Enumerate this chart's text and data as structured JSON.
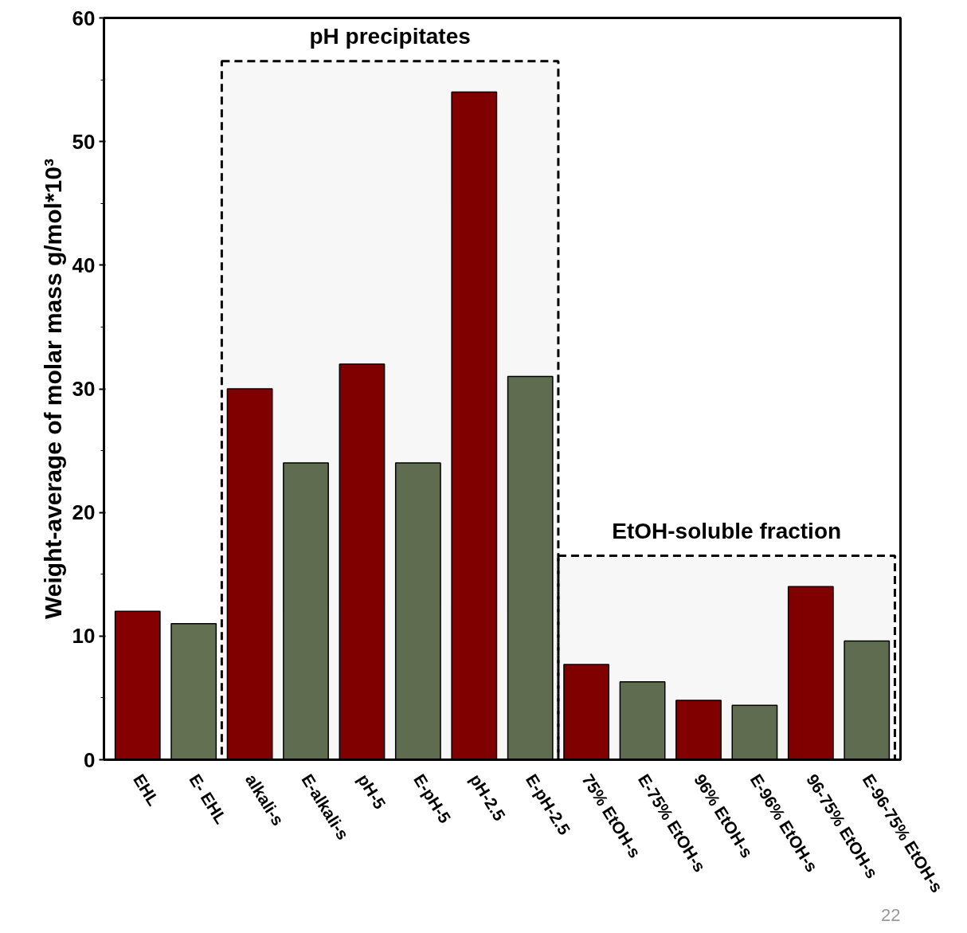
{
  "chart_data": {
    "type": "bar",
    "ylabel": "Weight-average of molar mass g/mol*10³",
    "categories": [
      "EHL",
      "E- EHL",
      "alkali-s",
      "E-alkali-s",
      "pH-5",
      "E-pH-5",
      "pH-2.5",
      "E-pH-2.5",
      "75% EtOH-s",
      "E-75% EtOH-s",
      "96% EtOH-s",
      "E-96% EtOH-s",
      "96-75% EtOH-s",
      "E-96-75% EtOH-s"
    ],
    "values": [
      12,
      11,
      30,
      24,
      32,
      24,
      54,
      31,
      7.7,
      6.3,
      4.8,
      4.4,
      14,
      9.6
    ],
    "colors": [
      "#850000",
      "#637052",
      "#850000",
      "#637052",
      "#850000",
      "#637052",
      "#850000",
      "#637052",
      "#850000",
      "#637052",
      "#850000",
      "#637052",
      "#850000",
      "#637052"
    ],
    "ylim": [
      0,
      60
    ],
    "yticks": [
      0,
      10,
      20,
      30,
      40,
      50,
      60
    ],
    "bands": [
      {
        "axis": "x",
        "from": "alkali-s",
        "to": "E-pH-2.5",
        "label": "pH precipitates"
      },
      {
        "axis": "x",
        "from": "75% EtOH-s",
        "to": "E-96-75% EtOH-s",
        "label": "EtOH-soluble fraction"
      }
    ],
    "annotations": [
      "22"
    ],
    "grid": false
  }
}
